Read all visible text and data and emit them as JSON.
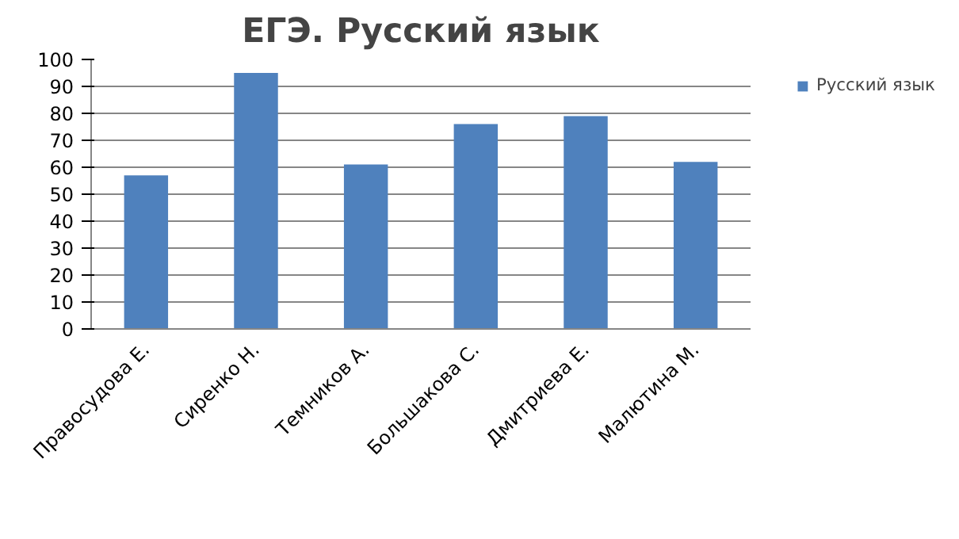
{
  "chart_data": {
    "type": "bar",
    "title": "ЕГЭ. Русский язык",
    "categories": [
      "Правосудова Е.",
      "Сиренко Н.",
      "Темников А.",
      "Большакова С.",
      "Дмитриева Е.",
      "Малютина М."
    ],
    "series": [
      {
        "name": "Русский язык",
        "color": "#4f81bd",
        "values": [
          57,
          95,
          61,
          76,
          79,
          62
        ]
      }
    ],
    "ylim": [
      0,
      100
    ],
    "yticks": [
      0,
      10,
      20,
      30,
      40,
      50,
      60,
      70,
      80,
      90,
      100
    ],
    "grid": "y",
    "legend": "right"
  }
}
